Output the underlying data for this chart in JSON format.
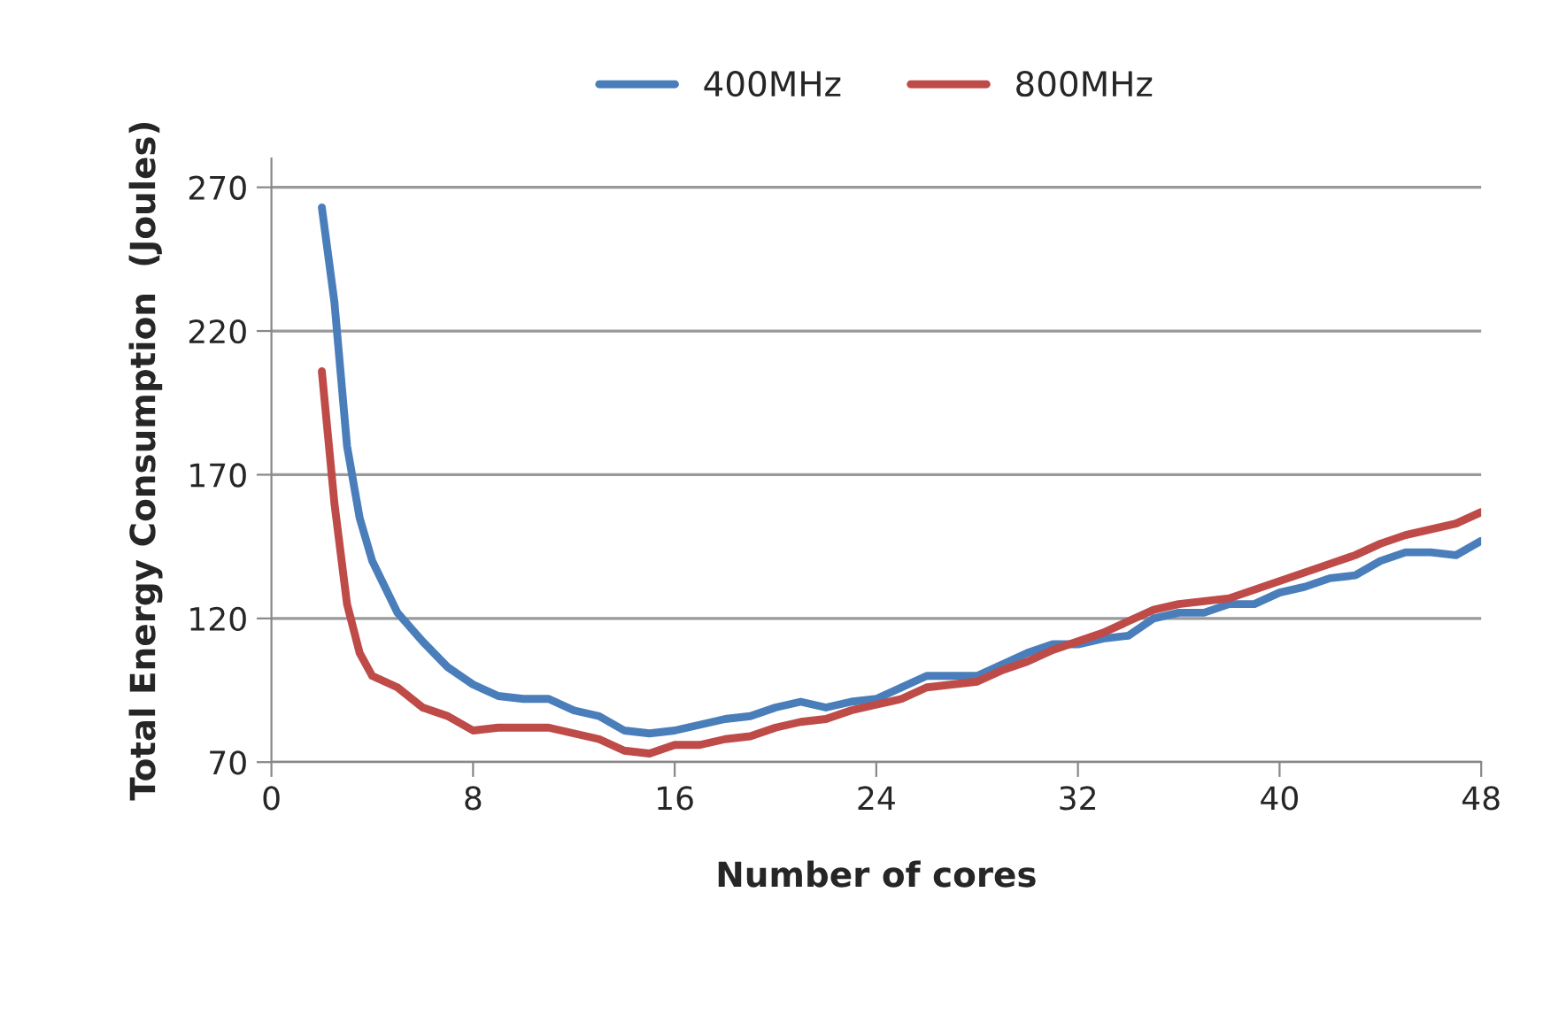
{
  "chart_data": {
    "type": "line",
    "xlabel": "Number of cores",
    "ylabel": "Total Energy Consumption  (Joules)",
    "xlim": [
      0,
      48
    ],
    "xticks": [
      0,
      8,
      16,
      24,
      32,
      40,
      48
    ],
    "ylim": [
      70,
      280
    ],
    "yticks": [
      70,
      120,
      170,
      220,
      270
    ],
    "grid": "y",
    "legend": "top",
    "marker": "none",
    "line_style": "solid",
    "x": [
      2,
      2.5,
      3,
      3.5,
      4,
      5,
      6,
      7,
      8,
      9,
      10,
      11,
      12,
      13,
      14,
      15,
      16,
      17,
      18,
      19,
      20,
      21,
      22,
      23,
      24,
      25,
      26,
      27,
      28,
      29,
      30,
      31,
      32,
      33,
      34,
      35,
      36,
      37,
      38,
      39,
      40,
      41,
      42,
      43,
      44,
      45,
      46,
      47,
      48
    ],
    "series": [
      {
        "name": "400MHz",
        "color": "#4a7ebb",
        "values": [
          263,
          230,
          180,
          155,
          140,
          122,
          112,
          103,
          97,
          93,
          92,
          92,
          88,
          86,
          81,
          80,
          81,
          83,
          85,
          86,
          89,
          91,
          89,
          91,
          92,
          96,
          100,
          100,
          100,
          104,
          108,
          111,
          111,
          113,
          114,
          120,
          122,
          122,
          125,
          125,
          129,
          131,
          134,
          135,
          140,
          143,
          143,
          142,
          147
        ]
      },
      {
        "name": "800MHz",
        "color": "#be4b48",
        "values": [
          206,
          160,
          125,
          108,
          100,
          96,
          89,
          86,
          81,
          82,
          82,
          82,
          80,
          78,
          74,
          73,
          76,
          76,
          78,
          79,
          82,
          84,
          85,
          88,
          90,
          92,
          96,
          97,
          98,
          102,
          105,
          109,
          112,
          115,
          119,
          123,
          125,
          126,
          127,
          130,
          133,
          136,
          139,
          142,
          146,
          149,
          151,
          153,
          157
        ]
      }
    ]
  }
}
